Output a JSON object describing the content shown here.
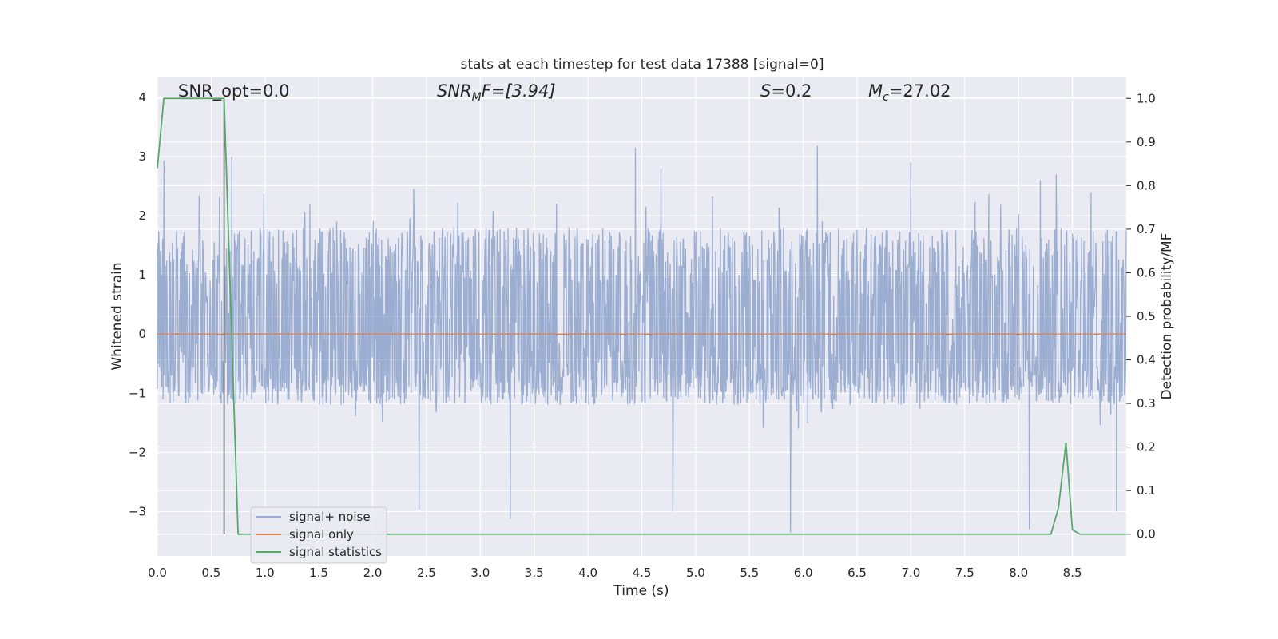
{
  "chart_data": {
    "type": "line",
    "title": "stats at each timestep for test data 17388 [signal=0]",
    "xlabel": "Time (s)",
    "ylabel": "Whitened strain",
    "y2label": "Detection probability/MF",
    "xlim": [
      0,
      9.0
    ],
    "ylim": [
      -3.75,
      4.35
    ],
    "y2lim": [
      -0.05,
      1.05
    ],
    "x_ticks": [
      0.0,
      0.5,
      1.0,
      1.5,
      2.0,
      2.5,
      3.0,
      3.5,
      4.0,
      4.5,
      5.0,
      5.5,
      6.0,
      6.5,
      7.0,
      7.5,
      8.0,
      8.5
    ],
    "x_tick_labels": [
      "0.0",
      "0.5",
      "1.0",
      "1.5",
      "2.0",
      "2.5",
      "3.0",
      "3.5",
      "4.0",
      "4.5",
      "5.0",
      "5.5",
      "6.0",
      "6.5",
      "7.0",
      "7.5",
      "8.0",
      "8.5"
    ],
    "y_ticks": [
      -3,
      -2,
      -1,
      0,
      1,
      2,
      3,
      4
    ],
    "y_tick_labels": [
      "−3",
      "−2",
      "−1",
      "0",
      "1",
      "2",
      "3",
      "4"
    ],
    "y2_ticks": [
      0.0,
      0.1,
      0.2,
      0.3,
      0.4,
      0.5,
      0.6,
      0.7,
      0.8,
      0.9,
      1.0
    ],
    "y2_tick_labels": [
      "0.0",
      "0.1",
      "0.2",
      "0.3",
      "0.4",
      "0.5",
      "0.6",
      "0.7",
      "0.8",
      "0.9",
      "1.0"
    ],
    "grid": true,
    "background": "#eaeaf2",
    "legend": {
      "placement": "lower-left",
      "entries": [
        {
          "label": "signal+ noise",
          "color": "#4c72b0"
        },
        {
          "label": "signal only",
          "color": "#dd8452"
        },
        {
          "label": "signal statistics",
          "color": "#55a868"
        }
      ]
    },
    "annotations": [
      {
        "text": "SNR_opt=0.0"
      },
      {
        "text_main": "SNR",
        "text_sub": "M",
        "text_rest": "F=[3.94]"
      },
      {
        "text_main": "S",
        "text_rest": "=0.2"
      },
      {
        "text_main": "M",
        "text_sub": "c",
        "text_rest": "=27.02"
      }
    ],
    "vertical_line": {
      "x": 0.62,
      "color": "#333333"
    },
    "series": [
      {
        "name": "signal+ noise",
        "axis": "left",
        "kind": "noise",
        "color": "#4c72b0",
        "x_range": [
          0,
          9.0
        ],
        "typical_range": [
          -1.6,
          1.9
        ],
        "peaks": [
          [
            0.06,
            2.93
          ],
          [
            0.69,
            3.0
          ],
          [
            2.38,
            2.45
          ],
          [
            4.44,
            3.15
          ],
          [
            4.68,
            2.8
          ],
          [
            6.13,
            3.18
          ],
          [
            7.0,
            2.9
          ],
          [
            8.2,
            2.6
          ],
          [
            8.35,
            2.7
          ],
          [
            2.43,
            -2.97
          ],
          [
            3.28,
            -3.12
          ],
          [
            4.79,
            -3.0
          ],
          [
            5.88,
            -3.35
          ],
          [
            8.1,
            -3.3
          ],
          [
            8.91,
            -3.0
          ]
        ]
      },
      {
        "name": "signal only",
        "axis": "left",
        "color": "#dd8452",
        "x": [
          0,
          9.0
        ],
        "y": [
          0,
          0
        ]
      },
      {
        "name": "signal statistics",
        "axis": "right",
        "color": "#55a868",
        "x": [
          0.0,
          0.06,
          0.12,
          0.62,
          0.75,
          8.0,
          8.3,
          8.37,
          8.44,
          8.5,
          8.57,
          9.0
        ],
        "y": [
          0.84,
          1.0,
          1.0,
          1.0,
          0.0,
          0.0,
          0.0,
          0.06,
          0.21,
          0.01,
          0.0,
          0.0
        ]
      }
    ]
  }
}
